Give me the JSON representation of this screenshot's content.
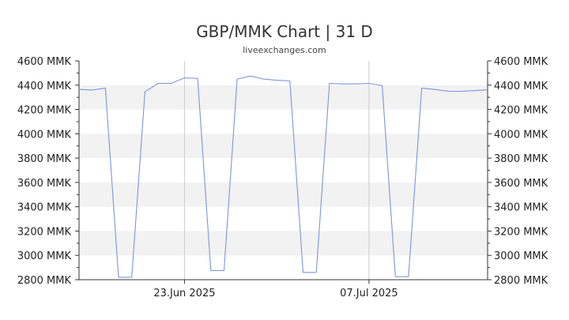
{
  "chart_data": {
    "type": "line",
    "title": "GBP/MMK Chart | 31 D",
    "subtitle": "liveexchanges.com",
    "xlabel": "",
    "ylabel": "",
    "unit": "MMK",
    "y_tick_labels": [
      "4600 MMK",
      "4400 MMK",
      "4200 MMK",
      "4000 MMK",
      "3800 MMK",
      "3600 MMK",
      "3400 MMK",
      "3200 MMK",
      "3000 MMK",
      "2800 MMK"
    ],
    "y_tick_values": [
      4600,
      4400,
      4200,
      4000,
      3800,
      3600,
      3400,
      3200,
      3000,
      2800
    ],
    "ylim": [
      2800,
      4600
    ],
    "xlim": [
      "2025-06-15",
      "2025-07-16"
    ],
    "x_tick_labels": [
      "23.Jun 2025",
      "07.Jul 2025"
    ],
    "x_tick_dates": [
      "2025-06-23",
      "2025-07-07"
    ],
    "grid": "horizontal bands",
    "legend": "none",
    "colors": {
      "line": "#7b96dc",
      "band": "#f2f2f2",
      "vgrid": "#cccccc",
      "axis": "#333333"
    },
    "series": [
      {
        "x": [
          "2025-06-15",
          "2025-06-16",
          "2025-06-17",
          "2025-06-18",
          "2025-06-19",
          "2025-06-20",
          "2025-06-21",
          "2025-06-22",
          "2025-06-23",
          "2025-06-24",
          "2025-06-25",
          "2025-06-26",
          "2025-06-27",
          "2025-06-28",
          "2025-06-29",
          "2025-06-30",
          "2025-07-01",
          "2025-07-02",
          "2025-07-03",
          "2025-07-04",
          "2025-07-05",
          "2025-07-06",
          "2025-07-07",
          "2025-07-08",
          "2025-07-09",
          "2025-07-10",
          "2025-07-11",
          "2025-07-12",
          "2025-07-13",
          "2025-07-14",
          "2025-07-15",
          "2025-07-16"
        ],
        "values": [
          4365,
          4360,
          4375,
          2820,
          2820,
          4345,
          4415,
          4415,
          4460,
          4455,
          2875,
          2875,
          4450,
          4475,
          4450,
          4440,
          4435,
          2860,
          2860,
          4415,
          4410,
          4410,
          4415,
          4395,
          2825,
          2825,
          4375,
          4365,
          4350,
          4350,
          4355,
          4362
        ]
      }
    ]
  }
}
